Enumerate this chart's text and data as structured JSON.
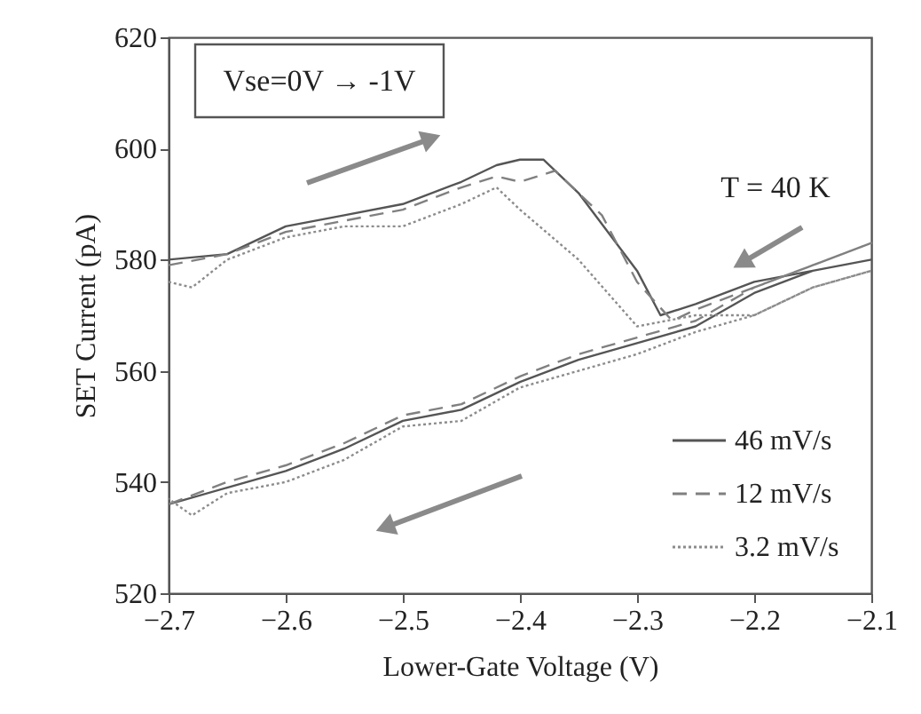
{
  "chart_data": {
    "type": "line",
    "xlabel": "Lower-Gate Voltage (V)",
    "ylabel": "SET Current (pA)",
    "xlim": [
      -2.7,
      -2.1
    ],
    "xticks": [
      -2.7,
      -2.6,
      -2.5,
      -2.4,
      -2.3,
      -2.2,
      -2.1
    ],
    "ylim": [
      520,
      620
    ],
    "yticks": [
      520,
      540,
      560,
      580,
      600,
      620
    ],
    "grid": false,
    "legend": "bottom right",
    "marker": "none",
    "annotations": [
      "Vse=0V → -1V",
      "T = 40 K"
    ],
    "series": [
      {
        "name": "46 mV/s",
        "color": "#555555",
        "line_style": "solid",
        "x": [
          -2.7,
          -2.65,
          -2.6,
          -2.55,
          -2.5,
          -2.45,
          -2.42,
          -2.4,
          -2.38,
          -2.35,
          -2.3,
          -2.28,
          -2.25,
          -2.2,
          -2.15,
          -2.1,
          -2.15,
          -2.2,
          -2.25,
          -2.3,
          -2.35,
          -2.4,
          -2.45,
          -2.5,
          -2.55,
          -2.6,
          -2.65,
          -2.7
        ],
        "values": [
          580,
          581,
          586,
          588,
          590,
          594,
          597,
          598,
          598,
          592,
          578,
          570,
          572,
          576,
          578,
          580,
          578,
          574,
          568,
          565,
          562,
          558,
          553,
          551,
          546,
          542,
          539,
          536
        ]
      },
      {
        "name": "12 mV/s",
        "color": "#808080",
        "line_style": "dashed",
        "x": [
          -2.7,
          -2.65,
          -2.6,
          -2.55,
          -2.5,
          -2.45,
          -2.42,
          -2.4,
          -2.37,
          -2.33,
          -2.3,
          -2.27,
          -2.25,
          -2.2,
          -2.15,
          -2.1,
          -2.15,
          -2.2,
          -2.25,
          -2.3,
          -2.35,
          -2.4,
          -2.45,
          -2.5,
          -2.55,
          -2.6,
          -2.65,
          -2.7
        ],
        "values": [
          579,
          581,
          585,
          587,
          589,
          593,
          595,
          594,
          596,
          588,
          576,
          569,
          571,
          575,
          579,
          583,
          579,
          575,
          569,
          566,
          563,
          559,
          554,
          552,
          547,
          543,
          540,
          536
        ]
      },
      {
        "name": "3.2 mV/s",
        "color": "#8c8c8c",
        "line_style": "dotted",
        "x": [
          -2.7,
          -2.68,
          -2.65,
          -2.6,
          -2.55,
          -2.5,
          -2.45,
          -2.42,
          -2.4,
          -2.35,
          -2.3,
          -2.25,
          -2.2,
          -2.15,
          -2.1,
          -2.15,
          -2.2,
          -2.25,
          -2.3,
          -2.35,
          -2.4,
          -2.45,
          -2.5,
          -2.55,
          -2.6,
          -2.65,
          -2.68,
          -2.7
        ],
        "values": [
          576,
          575,
          580,
          584,
          586,
          586,
          590,
          593,
          589,
          580,
          568,
          570,
          570,
          575,
          578,
          575,
          570,
          567,
          563,
          560,
          557,
          551,
          550,
          544,
          540,
          538,
          534,
          537
        ]
      }
    ]
  }
}
